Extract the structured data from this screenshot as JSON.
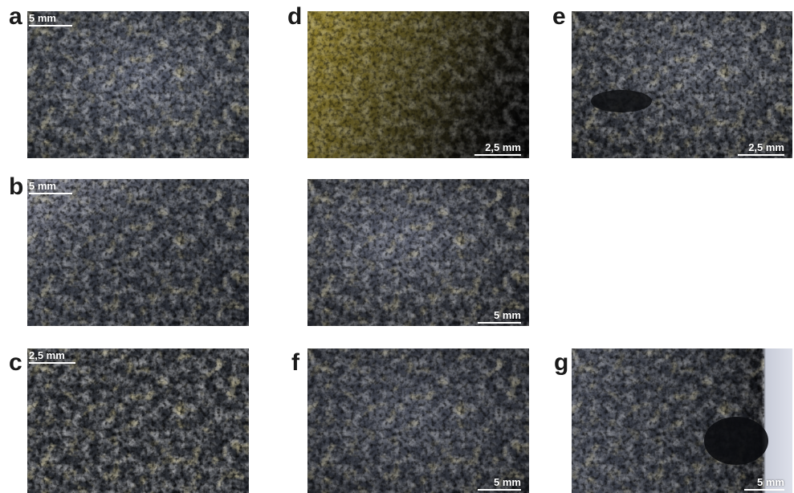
{
  "panels": {
    "a": {
      "letter": "a",
      "scale": "5 mm"
    },
    "b": {
      "letter": "b",
      "scale": "5 mm"
    },
    "c": {
      "letter": "c",
      "scale": "2,5 mm"
    },
    "d": {
      "letter": "d",
      "scale": "2,5 mm"
    },
    "d2": {
      "scale": "5 mm"
    },
    "e": {
      "letter": "e",
      "scale": "2,5 mm"
    },
    "f": {
      "letter": "f",
      "scale": "5 mm"
    },
    "g": {
      "letter": "g",
      "scale": "5 mm"
    }
  },
  "colors": {
    "rock_dark": "#1e2128",
    "rock_mid": "#3a3f4a",
    "rock_light": "#6c7080",
    "residue_yellow": "#b9a45a",
    "background": "#ffffff"
  }
}
